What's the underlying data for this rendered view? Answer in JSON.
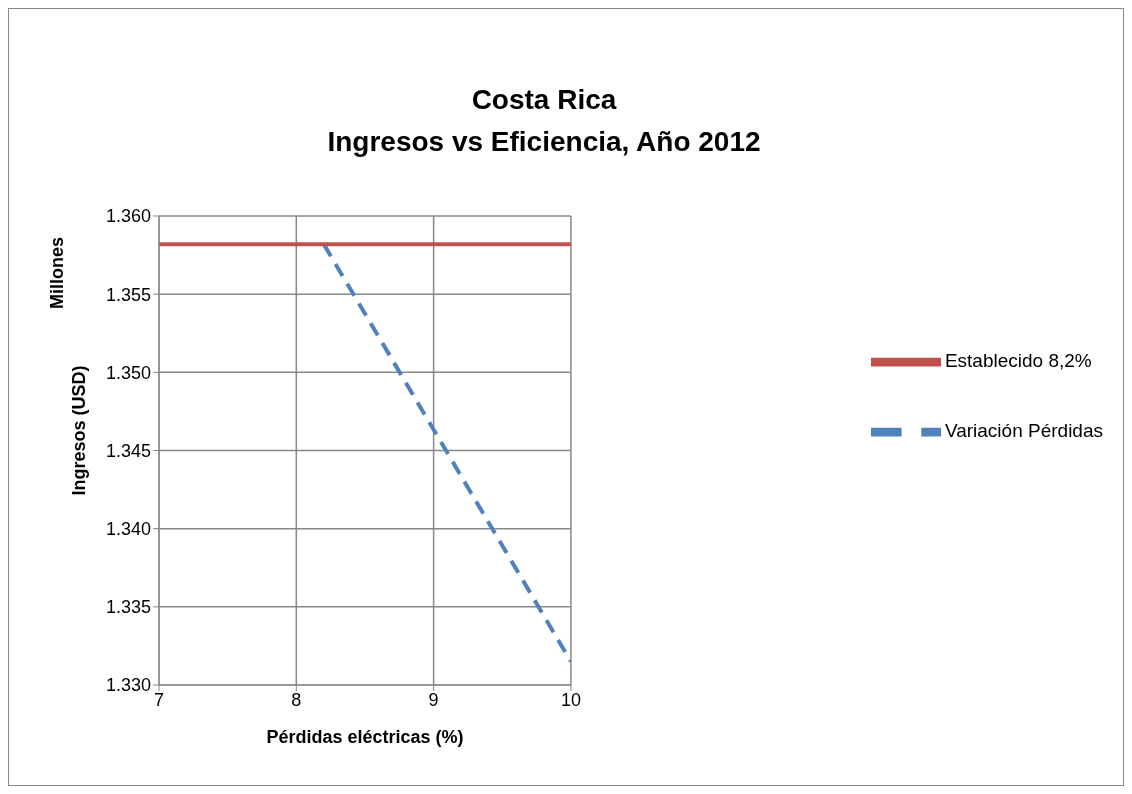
{
  "chart_data": {
    "type": "line",
    "title": "Costa Rica",
    "subtitle": "Ingresos vs Eficiencia, Año 2012",
    "xlabel": "Pérdidas eléctricas (%)",
    "ylabel": "Ingresos (USD)",
    "annotations": [
      "Millones"
    ],
    "series": [
      {
        "name": "Variación Pérdidas",
        "color": "#4f81bd",
        "x": [
          8.2,
          10
        ],
        "values": [
          1.3582,
          1.3315
        ],
        "line_style": "dashed"
      },
      {
        "name": "Establecido 8,2%",
        "color": "#c0504d",
        "x": [
          7,
          10
        ],
        "values": [
          1.3582,
          1.3582
        ],
        "line_style": "solid"
      }
    ],
    "xlim": [
      7,
      10
    ],
    "xticks": [
      7,
      8,
      9,
      10
    ],
    "ylim": [
      1.33,
      1.36
    ],
    "yticks": [
      {
        "value": 1.33,
        "label": "1.330"
      },
      {
        "value": 1.335,
        "label": "1.335"
      },
      {
        "value": 1.34,
        "label": "1.340"
      },
      {
        "value": 1.345,
        "label": "1.345"
      },
      {
        "value": 1.35,
        "label": "1.350"
      },
      {
        "value": 1.355,
        "label": "1.355"
      },
      {
        "value": 1.36,
        "label": "1.360"
      }
    ],
    "grid": true,
    "legend": "right",
    "marker": "none"
  }
}
